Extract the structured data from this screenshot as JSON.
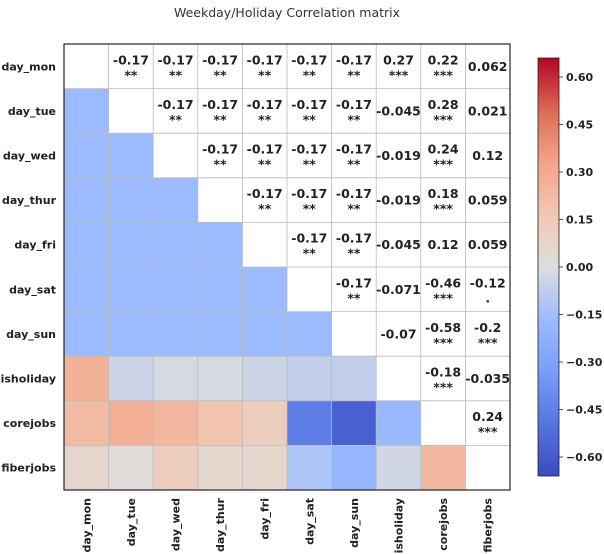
{
  "chart_data": {
    "type": "heatmap",
    "title": "Weekday/Holiday Correlation matrix",
    "variables": [
      "day_mon",
      "day_tue",
      "day_wed",
      "day_thur",
      "day_fri",
      "day_sat",
      "day_sun",
      "isholiday",
      "corejobs",
      "fiberjobs"
    ],
    "colormap": "coolwarm",
    "vmin": -0.66,
    "vmax": 0.66,
    "colorbar_ticks": [
      0.6,
      0.45,
      0.3,
      0.15,
      0.0,
      -0.15,
      -0.3,
      -0.45,
      -0.6
    ],
    "colorbar_tick_labels": [
      "0.60",
      "0.45",
      "0.30",
      "0.15",
      "0.00",
      "−0.15",
      "−0.30",
      "−0.45",
      "−0.60"
    ],
    "lower_triangle_values": [
      [],
      [
        -0.17
      ],
      [
        -0.17,
        -0.17
      ],
      [
        -0.17,
        -0.17,
        -0.17
      ],
      [
        -0.17,
        -0.17,
        -0.17,
        -0.17
      ],
      [
        -0.17,
        -0.17,
        -0.17,
        -0.17,
        -0.17
      ],
      [
        -0.17,
        -0.17,
        -0.17,
        -0.17,
        -0.17,
        -0.17
      ],
      [
        0.27,
        -0.045,
        -0.019,
        -0.019,
        -0.045,
        -0.071,
        -0.07
      ],
      [
        0.22,
        0.28,
        0.24,
        0.18,
        0.12,
        -0.46,
        -0.58,
        -0.18
      ],
      [
        0.062,
        0.021,
        0.12,
        0.059,
        0.059,
        -0.12,
        -0.2,
        -0.035,
        0.24
      ]
    ],
    "upper_annotations": [
      {
        "row": 0,
        "col": 1,
        "value": "-0.17",
        "stars": "**"
      },
      {
        "row": 0,
        "col": 2,
        "value": "-0.17",
        "stars": "**"
      },
      {
        "row": 0,
        "col": 3,
        "value": "-0.17",
        "stars": "**"
      },
      {
        "row": 0,
        "col": 4,
        "value": "-0.17",
        "stars": "**"
      },
      {
        "row": 0,
        "col": 5,
        "value": "-0.17",
        "stars": "**"
      },
      {
        "row": 0,
        "col": 6,
        "value": "-0.17",
        "stars": "**"
      },
      {
        "row": 0,
        "col": 7,
        "value": "0.27",
        "stars": "***"
      },
      {
        "row": 0,
        "col": 8,
        "value": "0.22",
        "stars": "***"
      },
      {
        "row": 0,
        "col": 9,
        "value": "0.062",
        "stars": ""
      },
      {
        "row": 1,
        "col": 2,
        "value": "-0.17",
        "stars": "**"
      },
      {
        "row": 1,
        "col": 3,
        "value": "-0.17",
        "stars": "**"
      },
      {
        "row": 1,
        "col": 4,
        "value": "-0.17",
        "stars": "**"
      },
      {
        "row": 1,
        "col": 5,
        "value": "-0.17",
        "stars": "**"
      },
      {
        "row": 1,
        "col": 6,
        "value": "-0.17",
        "stars": "**"
      },
      {
        "row": 1,
        "col": 7,
        "value": "-0.045",
        "stars": ""
      },
      {
        "row": 1,
        "col": 8,
        "value": "0.28",
        "stars": "***"
      },
      {
        "row": 1,
        "col": 9,
        "value": "0.021",
        "stars": ""
      },
      {
        "row": 2,
        "col": 3,
        "value": "-0.17",
        "stars": "**"
      },
      {
        "row": 2,
        "col": 4,
        "value": "-0.17",
        "stars": "**"
      },
      {
        "row": 2,
        "col": 5,
        "value": "-0.17",
        "stars": "**"
      },
      {
        "row": 2,
        "col": 6,
        "value": "-0.17",
        "stars": "**"
      },
      {
        "row": 2,
        "col": 7,
        "value": "-0.019",
        "stars": ""
      },
      {
        "row": 2,
        "col": 8,
        "value": "0.24",
        "stars": "***"
      },
      {
        "row": 2,
        "col": 9,
        "value": "0.12",
        "stars": ""
      },
      {
        "row": 3,
        "col": 4,
        "value": "-0.17",
        "stars": "**"
      },
      {
        "row": 3,
        "col": 5,
        "value": "-0.17",
        "stars": "**"
      },
      {
        "row": 3,
        "col": 6,
        "value": "-0.17",
        "stars": "**"
      },
      {
        "row": 3,
        "col": 7,
        "value": "-0.019",
        "stars": ""
      },
      {
        "row": 3,
        "col": 8,
        "value": "0.18",
        "stars": "***"
      },
      {
        "row": 3,
        "col": 9,
        "value": "0.059",
        "stars": ""
      },
      {
        "row": 4,
        "col": 5,
        "value": "-0.17",
        "stars": "**"
      },
      {
        "row": 4,
        "col": 6,
        "value": "-0.17",
        "stars": "**"
      },
      {
        "row": 4,
        "col": 7,
        "value": "-0.045",
        "stars": ""
      },
      {
        "row": 4,
        "col": 8,
        "value": "0.12",
        "stars": ""
      },
      {
        "row": 4,
        "col": 9,
        "value": "0.059",
        "stars": ""
      },
      {
        "row": 5,
        "col": 6,
        "value": "-0.17",
        "stars": "**"
      },
      {
        "row": 5,
        "col": 7,
        "value": "-0.071",
        "stars": ""
      },
      {
        "row": 5,
        "col": 8,
        "value": "-0.46",
        "stars": "***"
      },
      {
        "row": 5,
        "col": 9,
        "value": "-0.12",
        "stars": "."
      },
      {
        "row": 6,
        "col": 7,
        "value": "-0.07",
        "stars": ""
      },
      {
        "row": 6,
        "col": 8,
        "value": "-0.58",
        "stars": "***"
      },
      {
        "row": 6,
        "col": 9,
        "value": "-0.2",
        "stars": "***"
      },
      {
        "row": 7,
        "col": 8,
        "value": "-0.18",
        "stars": "***"
      },
      {
        "row": 7,
        "col": 9,
        "value": "-0.035",
        "stars": ""
      },
      {
        "row": 8,
        "col": 9,
        "value": "0.24",
        "stars": "***"
      }
    ]
  }
}
